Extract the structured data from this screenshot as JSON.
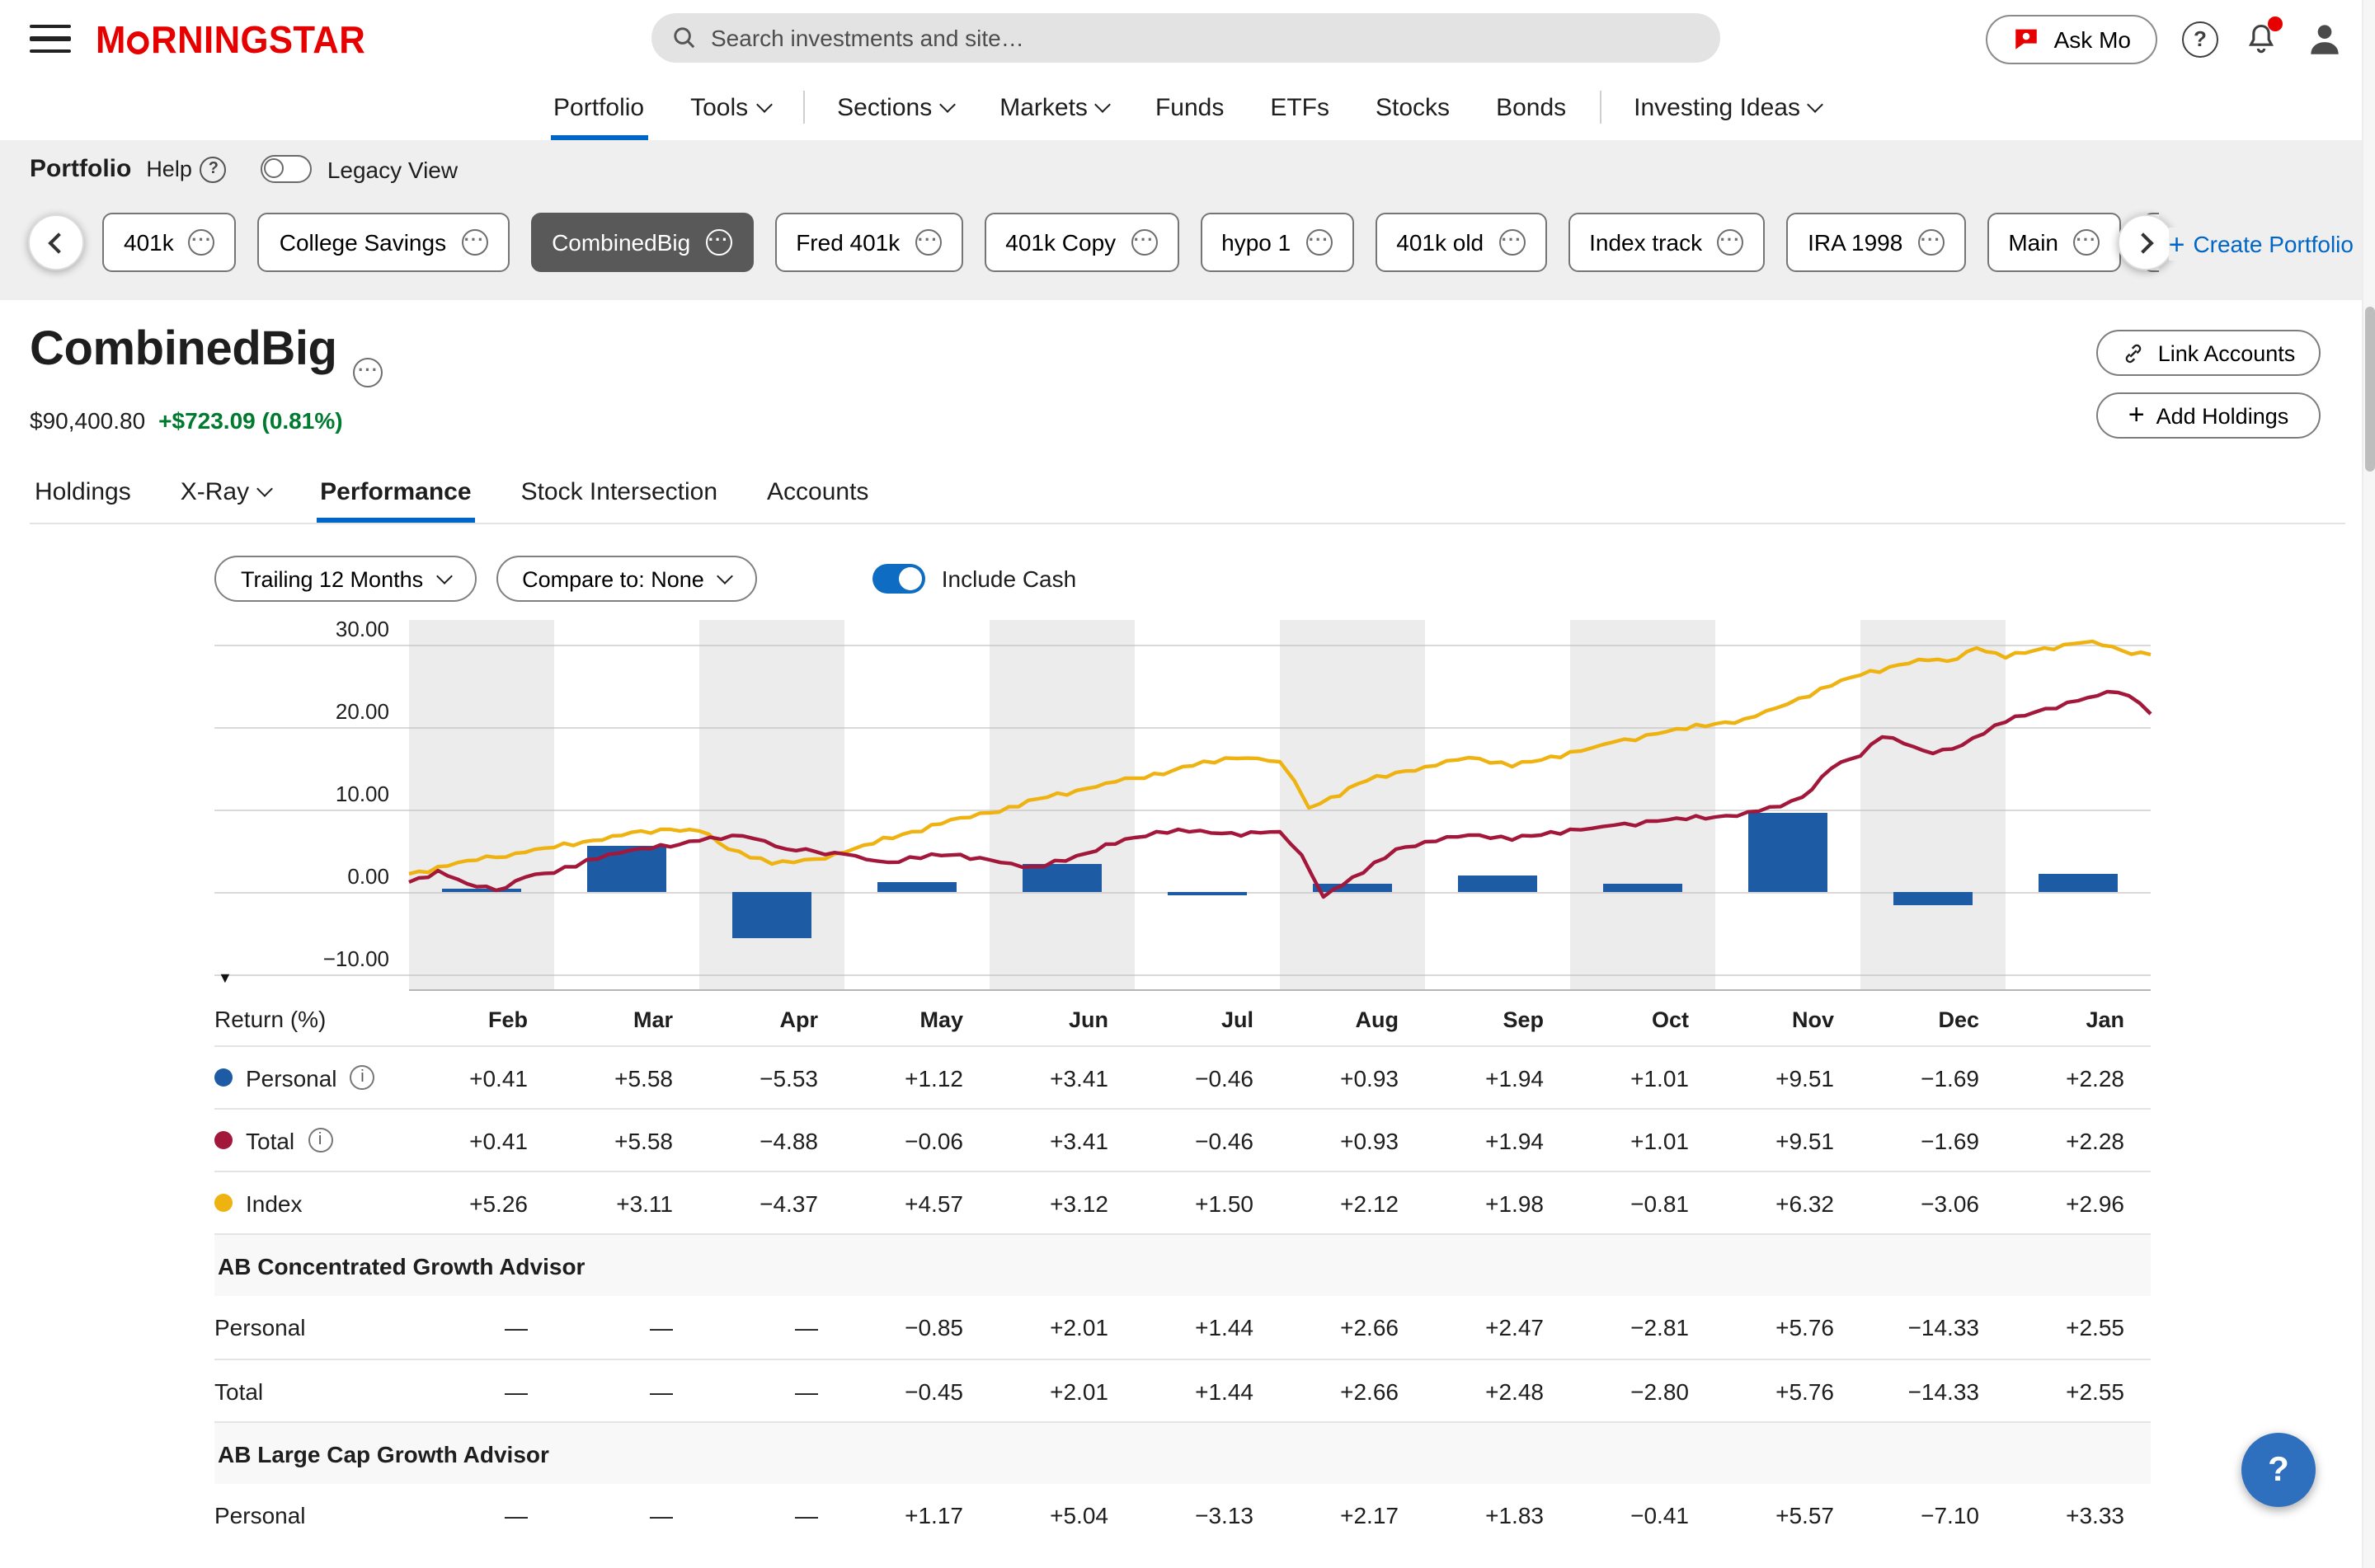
{
  "header": {
    "logo_text": "MORNINGSTAR",
    "search_placeholder": "Search investments and site…",
    "ask_mo": "Ask Mo"
  },
  "nav": {
    "items": [
      {
        "label": "Portfolio",
        "active": true
      },
      {
        "label": "Tools",
        "caret": true
      },
      {
        "divider": true
      },
      {
        "label": "Sections",
        "caret": true
      },
      {
        "label": "Markets",
        "caret": true
      },
      {
        "label": "Funds"
      },
      {
        "label": "ETFs"
      },
      {
        "label": "Stocks"
      },
      {
        "label": "Bonds"
      },
      {
        "divider": true
      },
      {
        "label": "Investing Ideas",
        "caret": true
      }
    ]
  },
  "portfolio_bar": {
    "label": "Portfolio",
    "help": "Help",
    "legacy_view": "Legacy View",
    "create_portfolio": "Create Portfolio",
    "chips": [
      {
        "label": "401k"
      },
      {
        "label": "College Savings"
      },
      {
        "label": "CombinedBig",
        "selected": true
      },
      {
        "label": "Fred 401k"
      },
      {
        "label": "401k Copy"
      },
      {
        "label": "hypo 1"
      },
      {
        "label": "401k old"
      },
      {
        "label": "Index track"
      },
      {
        "label": "IRA 1998"
      },
      {
        "label": "Main"
      },
      {
        "label": "M"
      }
    ]
  },
  "portfolio": {
    "title": "CombinedBig",
    "value": "$90,400.80",
    "change": "+$723.09 (0.81%)",
    "link_accounts": "Link Accounts",
    "add_holdings": "Add Holdings"
  },
  "tabs": [
    {
      "label": "Holdings"
    },
    {
      "label": "X-Ray",
      "caret": true
    },
    {
      "label": "Performance",
      "active": true
    },
    {
      "label": "Stock Intersection"
    },
    {
      "label": "Accounts"
    }
  ],
  "controls": {
    "period": "Trailing 12 Months",
    "compare": "Compare to: None",
    "include_cash": "Include Cash",
    "include_cash_on": true
  },
  "chart_data": {
    "type": "combo-bar-line",
    "months": [
      "Feb",
      "Mar",
      "Apr",
      "May",
      "Jun",
      "Jul",
      "Aug",
      "Sep",
      "Oct",
      "Nov",
      "Dec",
      "Jan"
    ],
    "y_ticks": [
      "30.00",
      "20.00",
      "10.00",
      "0.00",
      "−10.00"
    ],
    "y_tick_values": [
      30,
      20,
      10,
      0,
      -10
    ],
    "y_range": [
      -12,
      33
    ],
    "grid": true,
    "bar_series": {
      "name": "Personal",
      "color": "#1d5ba4",
      "values": [
        0.41,
        5.58,
        -5.53,
        1.12,
        3.41,
        -0.46,
        0.93,
        1.94,
        1.01,
        9.51,
        -1.69,
        2.28
      ]
    },
    "line_series": [
      {
        "name": "Index",
        "color": "#eeb211",
        "points": [
          [
            0,
            2.2
          ],
          [
            0.4,
            3.8
          ],
          [
            0.8,
            4.8
          ],
          [
            1,
            5.4
          ],
          [
            1.4,
            6.8
          ],
          [
            1.8,
            7.6
          ],
          [
            2,
            7.4
          ],
          [
            2.2,
            5.2
          ],
          [
            2.5,
            3.4
          ],
          [
            2.8,
            4.0
          ],
          [
            3,
            4.8
          ],
          [
            3.4,
            7.0
          ],
          [
            3.8,
            9.0
          ],
          [
            4,
            9.6
          ],
          [
            4.4,
            11.5
          ],
          [
            4.8,
            13.2
          ],
          [
            5,
            13.8
          ],
          [
            5.4,
            15.3
          ],
          [
            5.7,
            16.2
          ],
          [
            6,
            15.8
          ],
          [
            6.1,
            13.5
          ],
          [
            6.2,
            10.2
          ],
          [
            6.35,
            11.5
          ],
          [
            6.6,
            13.5
          ],
          [
            6.8,
            14.5
          ],
          [
            7,
            15.2
          ],
          [
            7.3,
            16.3
          ],
          [
            7.6,
            15.2
          ],
          [
            7.8,
            16.0
          ],
          [
            8,
            17.0
          ],
          [
            8.3,
            18.2
          ],
          [
            8.6,
            19.2
          ],
          [
            9,
            20.4
          ],
          [
            9.2,
            21.0
          ],
          [
            9.5,
            22.8
          ],
          [
            9.8,
            25.0
          ],
          [
            10,
            26.3
          ],
          [
            10.2,
            27.3
          ],
          [
            10.4,
            28.2
          ],
          [
            10.6,
            28.0
          ],
          [
            10.8,
            29.6
          ],
          [
            11,
            28.4
          ],
          [
            11.2,
            29.3
          ],
          [
            11.4,
            30.0
          ],
          [
            11.6,
            30.4
          ],
          [
            11.8,
            29.3
          ],
          [
            12,
            28.8
          ]
        ]
      },
      {
        "name": "Total",
        "color": "#a2173a",
        "points": [
          [
            0,
            1.2
          ],
          [
            0.2,
            2.6
          ],
          [
            0.4,
            1.0
          ],
          [
            0.6,
            0.2
          ],
          [
            0.8,
            1.8
          ],
          [
            1,
            2.3
          ],
          [
            1.3,
            4.0
          ],
          [
            1.6,
            5.3
          ],
          [
            2,
            6.2
          ],
          [
            2.3,
            6.8
          ],
          [
            2.6,
            5.2
          ],
          [
            3,
            4.6
          ],
          [
            3.3,
            3.6
          ],
          [
            3.6,
            4.6
          ],
          [
            4,
            3.9
          ],
          [
            4.3,
            3.1
          ],
          [
            4.6,
            4.4
          ],
          [
            5,
            6.6
          ],
          [
            5.3,
            7.6
          ],
          [
            5.6,
            7.1
          ],
          [
            6,
            7.3
          ],
          [
            6.15,
            4.5
          ],
          [
            6.3,
            -0.6
          ],
          [
            6.5,
            1.8
          ],
          [
            6.8,
            5.2
          ],
          [
            7,
            6.1
          ],
          [
            7.3,
            6.9
          ],
          [
            7.6,
            6.3
          ],
          [
            8,
            7.6
          ],
          [
            8.3,
            8.1
          ],
          [
            8.6,
            8.6
          ],
          [
            9,
            9.1
          ],
          [
            9.3,
            9.8
          ],
          [
            9.6,
            11.5
          ],
          [
            9.8,
            15.0
          ],
          [
            10,
            16.5
          ],
          [
            10.15,
            18.8
          ],
          [
            10.3,
            18.0
          ],
          [
            10.5,
            16.8
          ],
          [
            10.7,
            17.8
          ],
          [
            11,
            20.6
          ],
          [
            11.2,
            21.8
          ],
          [
            11.5,
            23.2
          ],
          [
            11.7,
            24.3
          ],
          [
            11.85,
            23.8
          ],
          [
            12,
            21.6
          ]
        ]
      }
    ]
  },
  "table": {
    "header_label": "Return (%)",
    "groups": [
      {
        "rows": [
          {
            "name": "Personal",
            "dot": "#1d5ba4",
            "info": true,
            "values": [
              "+0.41",
              "+5.58",
              "−5.53",
              "+1.12",
              "+3.41",
              "−0.46",
              "+0.93",
              "+1.94",
              "+1.01",
              "+9.51",
              "−1.69",
              "+2.28"
            ]
          },
          {
            "name": "Total",
            "dot": "#a2173a",
            "info": true,
            "values": [
              "+0.41",
              "+5.58",
              "−4.88",
              "−0.06",
              "+3.41",
              "−0.46",
              "+0.93",
              "+1.94",
              "+1.01",
              "+9.51",
              "−1.69",
              "+2.28"
            ]
          },
          {
            "name": "Index",
            "dot": "#eeb211",
            "info": false,
            "values": [
              "+5.26",
              "+3.11",
              "−4.37",
              "+4.57",
              "+3.12",
              "+1.50",
              "+2.12",
              "+1.98",
              "−0.81",
              "+6.32",
              "−3.06",
              "+2.96"
            ]
          }
        ]
      },
      {
        "title": "AB Concentrated Growth Advisor",
        "rows": [
          {
            "name": "Personal",
            "values": [
              "—",
              "—",
              "—",
              "−0.85",
              "+2.01",
              "+1.44",
              "+2.66",
              "+2.47",
              "−2.81",
              "+5.76",
              "−14.33",
              "+2.55"
            ]
          },
          {
            "name": "Total",
            "values": [
              "—",
              "—",
              "—",
              "−0.45",
              "+2.01",
              "+1.44",
              "+2.66",
              "+2.48",
              "−2.80",
              "+5.76",
              "−14.33",
              "+2.55"
            ]
          }
        ]
      },
      {
        "title": "AB Large Cap Growth Advisor",
        "rows": [
          {
            "name": "Personal",
            "values": [
              "—",
              "—",
              "—",
              "+1.17",
              "+5.04",
              "−3.13",
              "+2.17",
              "+1.83",
              "−0.41",
              "+5.57",
              "−7.10",
              "+3.33"
            ]
          }
        ]
      }
    ]
  },
  "colors": {
    "brand_red": "#e60000",
    "accent_blue": "#0066c5",
    "bar_blue": "#1d5ba4",
    "total_red": "#a2173a",
    "index_yellow": "#eeb211",
    "gain_green": "#007a2f",
    "band_gray": "#ececec"
  }
}
